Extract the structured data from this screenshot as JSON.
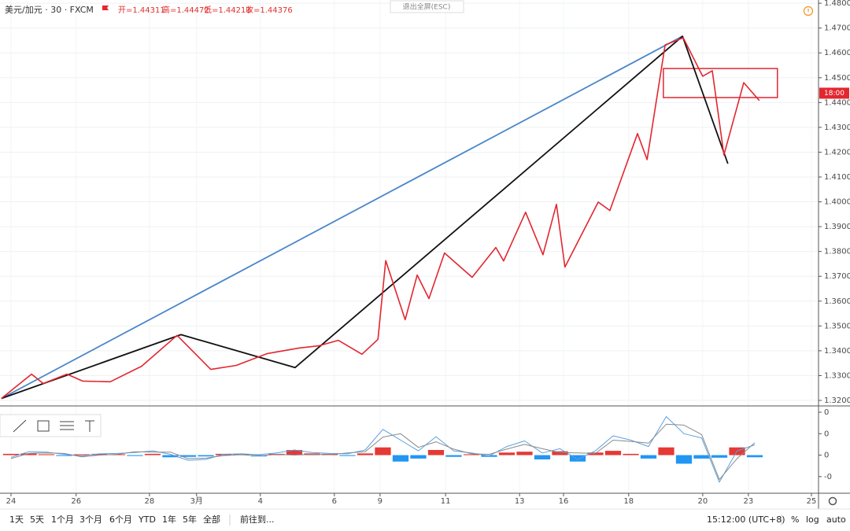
{
  "header": {
    "symbol": "美元/加元 · 30 · FXCM",
    "ohlc": [
      "开=1.44311",
      "高=1.44472",
      "低=1.44213",
      "收=1.44376"
    ]
  },
  "exit_fullscreen": "退出全屏(ESC)",
  "chart_data": [
    {
      "type": "line",
      "xlim": [
        -0.31,
        22.8
      ],
      "ylim": [
        1.3181,
        1.4813
      ],
      "yticks": [
        {
          "value": 1.32,
          "label": "1.32000"
        },
        {
          "value": 1.33,
          "label": "1.33000"
        },
        {
          "value": 1.34,
          "label": "1.34000"
        },
        {
          "value": 1.35,
          "label": "1.35000"
        },
        {
          "value": 1.36,
          "label": "1.36000"
        },
        {
          "value": 1.37,
          "label": "1.37000"
        },
        {
          "value": 1.38,
          "label": "1.38000"
        },
        {
          "value": 1.39,
          "label": "1.39000"
        },
        {
          "value": 1.4,
          "label": "1.40000"
        },
        {
          "value": 1.41,
          "label": "1.41000"
        },
        {
          "value": 1.42,
          "label": "1.42000"
        },
        {
          "value": 1.43,
          "label": "1.43000"
        },
        {
          "value": 1.44,
          "label": "1.44000"
        },
        {
          "value": 1.45,
          "label": "1.45000"
        },
        {
          "value": 1.46,
          "label": "1.46000"
        },
        {
          "value": 1.47,
          "label": "1.47000"
        },
        {
          "value": 1.48,
          "label": "1.48000"
        }
      ],
      "grid": true,
      "series": [
        {
          "color": "#4a86c8",
          "x": [
            -0.27,
            18.96
          ],
          "values": [
            1.3208,
            1.4667
          ]
        },
        {
          "color": "#111111",
          "x": [
            -0.27,
            4.8,
            8.02,
            18.96,
            20.24
          ],
          "values": [
            1.3208,
            1.3465,
            1.3332,
            1.4667,
            1.4154
          ]
        },
        {
          "color": "#e3262f",
          "x": [
            -0.27,
            0.58,
            0.91,
            1.58,
            2.02,
            2.8,
            3.69,
            4.69,
            5.64,
            6.36,
            7.24,
            8.13,
            8.69,
            9.24,
            9.91,
            10.36,
            10.58,
            11.13,
            11.47,
            11.8,
            12.24,
            13.02,
            13.69,
            13.91,
            14.53,
            15.02,
            15.4,
            15.64,
            16.58,
            16.91,
            17.69,
            17.96,
            18.47,
            18.98,
            19.53,
            19.8,
            20.13,
            20.69,
            21.13
          ],
          "values": [
            1.3208,
            1.3306,
            1.3268,
            1.3306,
            1.3278,
            1.3275,
            1.3338,
            1.3462,
            1.3325,
            1.3341,
            1.3389,
            1.3411,
            1.342,
            1.3442,
            1.3386,
            1.3446,
            1.3763,
            1.3525,
            1.3705,
            1.361,
            1.3794,
            1.3696,
            1.3816,
            1.3762,
            1.3958,
            1.3787,
            1.399,
            1.3737,
            1.3999,
            1.3965,
            1.4275,
            1.417,
            1.4632,
            1.4661,
            1.4506,
            1.4528,
            1.4189,
            1.448,
            1.4408
          ]
        }
      ],
      "zones": [
        {
          "color": "#e3262f",
          "x": [
            18.42,
            21.64
          ],
          "y": [
            1.442,
            1.4537
          ]
        }
      ],
      "last_price": {
        "value": 1.44376,
        "label": "18:00",
        "color": "#e3262f"
      }
    },
    {
      "type": "macd",
      "xlim": [
        -0.31,
        22.8
      ],
      "ylim": [
        -0.0087,
        0.0111
      ],
      "yticks": [
        {
          "value": -0.005,
          "label": "-0"
        },
        {
          "value": 0,
          "label": "0"
        },
        {
          "value": 0.005,
          "label": "0"
        },
        {
          "value": 0.01,
          "label": "0"
        }
      ],
      "xticks": [
        {
          "value": 0,
          "label": "24"
        },
        {
          "value": 1.84,
          "label": "26"
        },
        {
          "value": 3.91,
          "label": "28"
        },
        {
          "value": 5.24,
          "label": "3月"
        },
        {
          "value": 7.04,
          "label": "4"
        },
        {
          "value": 9.13,
          "label": "6"
        },
        {
          "value": 10.42,
          "label": "9"
        },
        {
          "value": 12.27,
          "label": "11"
        },
        {
          "value": 14.36,
          "label": "13"
        },
        {
          "value": 15.6,
          "label": "16"
        },
        {
          "value": 17.44,
          "label": "18"
        },
        {
          "value": 19.53,
          "label": "20"
        },
        {
          "value": 20.82,
          "label": "23"
        },
        {
          "value": 22.6,
          "label": "25"
        }
      ],
      "x": [
        0,
        0.5,
        1,
        1.5,
        2,
        2.5,
        3,
        3.5,
        4,
        4.5,
        5,
        5.5,
        6,
        6.5,
        7,
        7.5,
        8,
        8.5,
        9,
        9.5,
        10,
        10.5,
        11,
        11.5,
        12,
        12.5,
        13,
        13.5,
        14,
        14.5,
        15,
        15.5,
        16,
        16.5,
        17,
        17.5,
        18,
        18.5,
        19,
        19.5,
        20,
        20.5,
        21
      ],
      "histogram": [
        0.0003,
        0.0004,
        0.0002,
        -0.0002,
        0.0002,
        0.0003,
        0.0002,
        -0.0002,
        0.0003,
        -0.0005,
        -0.0004,
        -0.0003,
        0.0003,
        0.0002,
        -0.0003,
        0.0003,
        0.0012,
        0.0004,
        0.0003,
        -0.0002,
        0.0004,
        0.0018,
        -0.0015,
        -0.0008,
        0.0012,
        -0.0004,
        0.0002,
        -0.0004,
        0.0006,
        0.0008,
        -0.001,
        0.0009,
        -0.0015,
        0.0006,
        0.001,
        0.0003,
        -0.0008,
        0.0018,
        -0.002,
        -0.0008,
        -0.0006,
        0.0018,
        -0.0005
      ],
      "colors": {
        "positive": "#e53935",
        "negative": "#2196f3"
      },
      "series": [
        {
          "color": "#5aa0e0",
          "values": [
            -0.0005,
            0.0008,
            0.0007,
            0.0002,
            -0.0002,
            0.0003,
            0.0004,
            0.0006,
            0.001,
            0.0002,
            -0.0012,
            -0.001,
            0.0002,
            0.0003,
            0.0001,
            0.0005,
            0.0012,
            0.0006,
            0.0004,
            0.0003,
            0.0012,
            0.006,
            0.0035,
            0.001,
            0.0043,
            0.001,
            0.0005,
            -0.0002,
            0.002,
            0.0033,
            0.0005,
            0.0015,
            -0.001,
            0.001,
            0.0045,
            0.0035,
            0.002,
            0.009,
            0.005,
            0.004,
            -0.0063,
            0.001,
            0.0024
          ]
        },
        {
          "color": "#8a8a8a",
          "values": [
            -0.0008,
            0.0004,
            0.0005,
            0.0004,
            -0.0004,
            0,
            0.0002,
            0.0008,
            0.0007,
            0.0007,
            -0.0008,
            -0.0007,
            -0.0001,
            0.0001,
            -0.0002,
            0.0002,
            0,
            0.0002,
            0.0001,
            0.0005,
            0.0008,
            0.0042,
            0.005,
            0.0018,
            0.0031,
            0.0014,
            0.0003,
            0.0002,
            0.0014,
            0.0025,
            0.0015,
            0.0006,
            0.0005,
            0.0004,
            0.0035,
            0.0032,
            0.0028,
            0.0072,
            0.007,
            0.0048,
            -0.0057,
            -0.0008,
            0.0029
          ]
        }
      ]
    }
  ],
  "bottom_bar": {
    "ranges": [
      "1天",
      "5天",
      "1个月",
      "3个月",
      "6个月",
      "YTD",
      "1年",
      "5年",
      "全部"
    ],
    "goto": "前往到...",
    "time": "15:12:00 (UTC+8)",
    "options": [
      "%",
      "log",
      "auto"
    ]
  }
}
